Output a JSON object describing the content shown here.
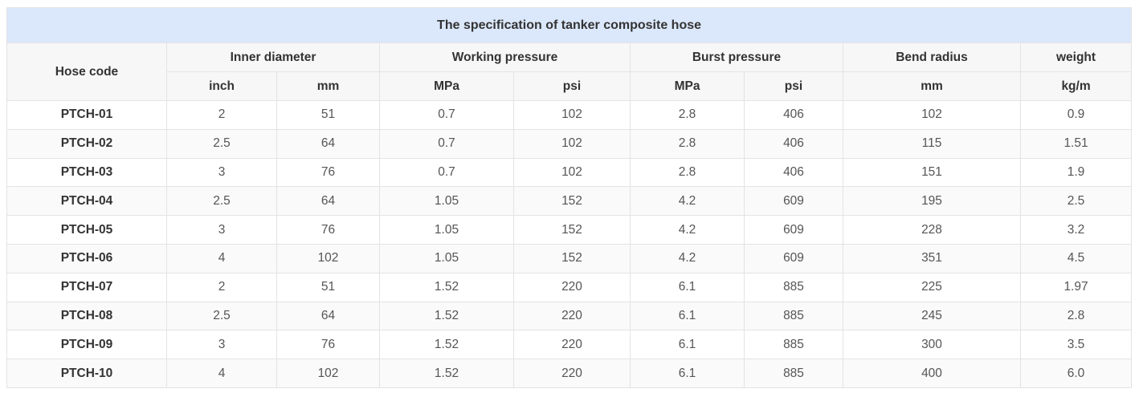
{
  "table": {
    "title": "The specification of tanker composite hose",
    "headers": {
      "hose_code": "Hose code",
      "inner_diameter": "Inner diameter",
      "working_pressure": "Working pressure",
      "burst_pressure": "Burst pressure",
      "bend_radius": "Bend radius",
      "weight": "weight"
    },
    "units": [
      "inch",
      "mm",
      "MPa",
      "psi",
      "MPa",
      "psi",
      "mm",
      "kg/m"
    ],
    "rows": [
      [
        "PTCH-01",
        "2",
        "51",
        "0.7",
        "102",
        "2.8",
        "406",
        "102",
        "0.9"
      ],
      [
        "PTCH-02",
        "2.5",
        "64",
        "0.7",
        "102",
        "2.8",
        "406",
        "115",
        "1.51"
      ],
      [
        "PTCH-03",
        "3",
        "76",
        "0.7",
        "102",
        "2.8",
        "406",
        "151",
        "1.9"
      ],
      [
        "PTCH-04",
        "2.5",
        "64",
        "1.05",
        "152",
        "4.2",
        "609",
        "195",
        "2.5"
      ],
      [
        "PTCH-05",
        "3",
        "76",
        "1.05",
        "152",
        "4.2",
        "609",
        "228",
        "3.2"
      ],
      [
        "PTCH-06",
        "4",
        "102",
        "1.05",
        "152",
        "4.2",
        "609",
        "351",
        "4.5"
      ],
      [
        "PTCH-07",
        "2",
        "51",
        "1.52",
        "220",
        "6.1",
        "885",
        "225",
        "1.97"
      ],
      [
        "PTCH-08",
        "2.5",
        "64",
        "1.52",
        "220",
        "6.1",
        "885",
        "245",
        "2.8"
      ],
      [
        "PTCH-09",
        "3",
        "76",
        "1.52",
        "220",
        "6.1",
        "885",
        "300",
        "3.5"
      ],
      [
        "PTCH-10",
        "4",
        "102",
        "1.52",
        "220",
        "6.1",
        "885",
        "400",
        "6.0"
      ]
    ]
  }
}
